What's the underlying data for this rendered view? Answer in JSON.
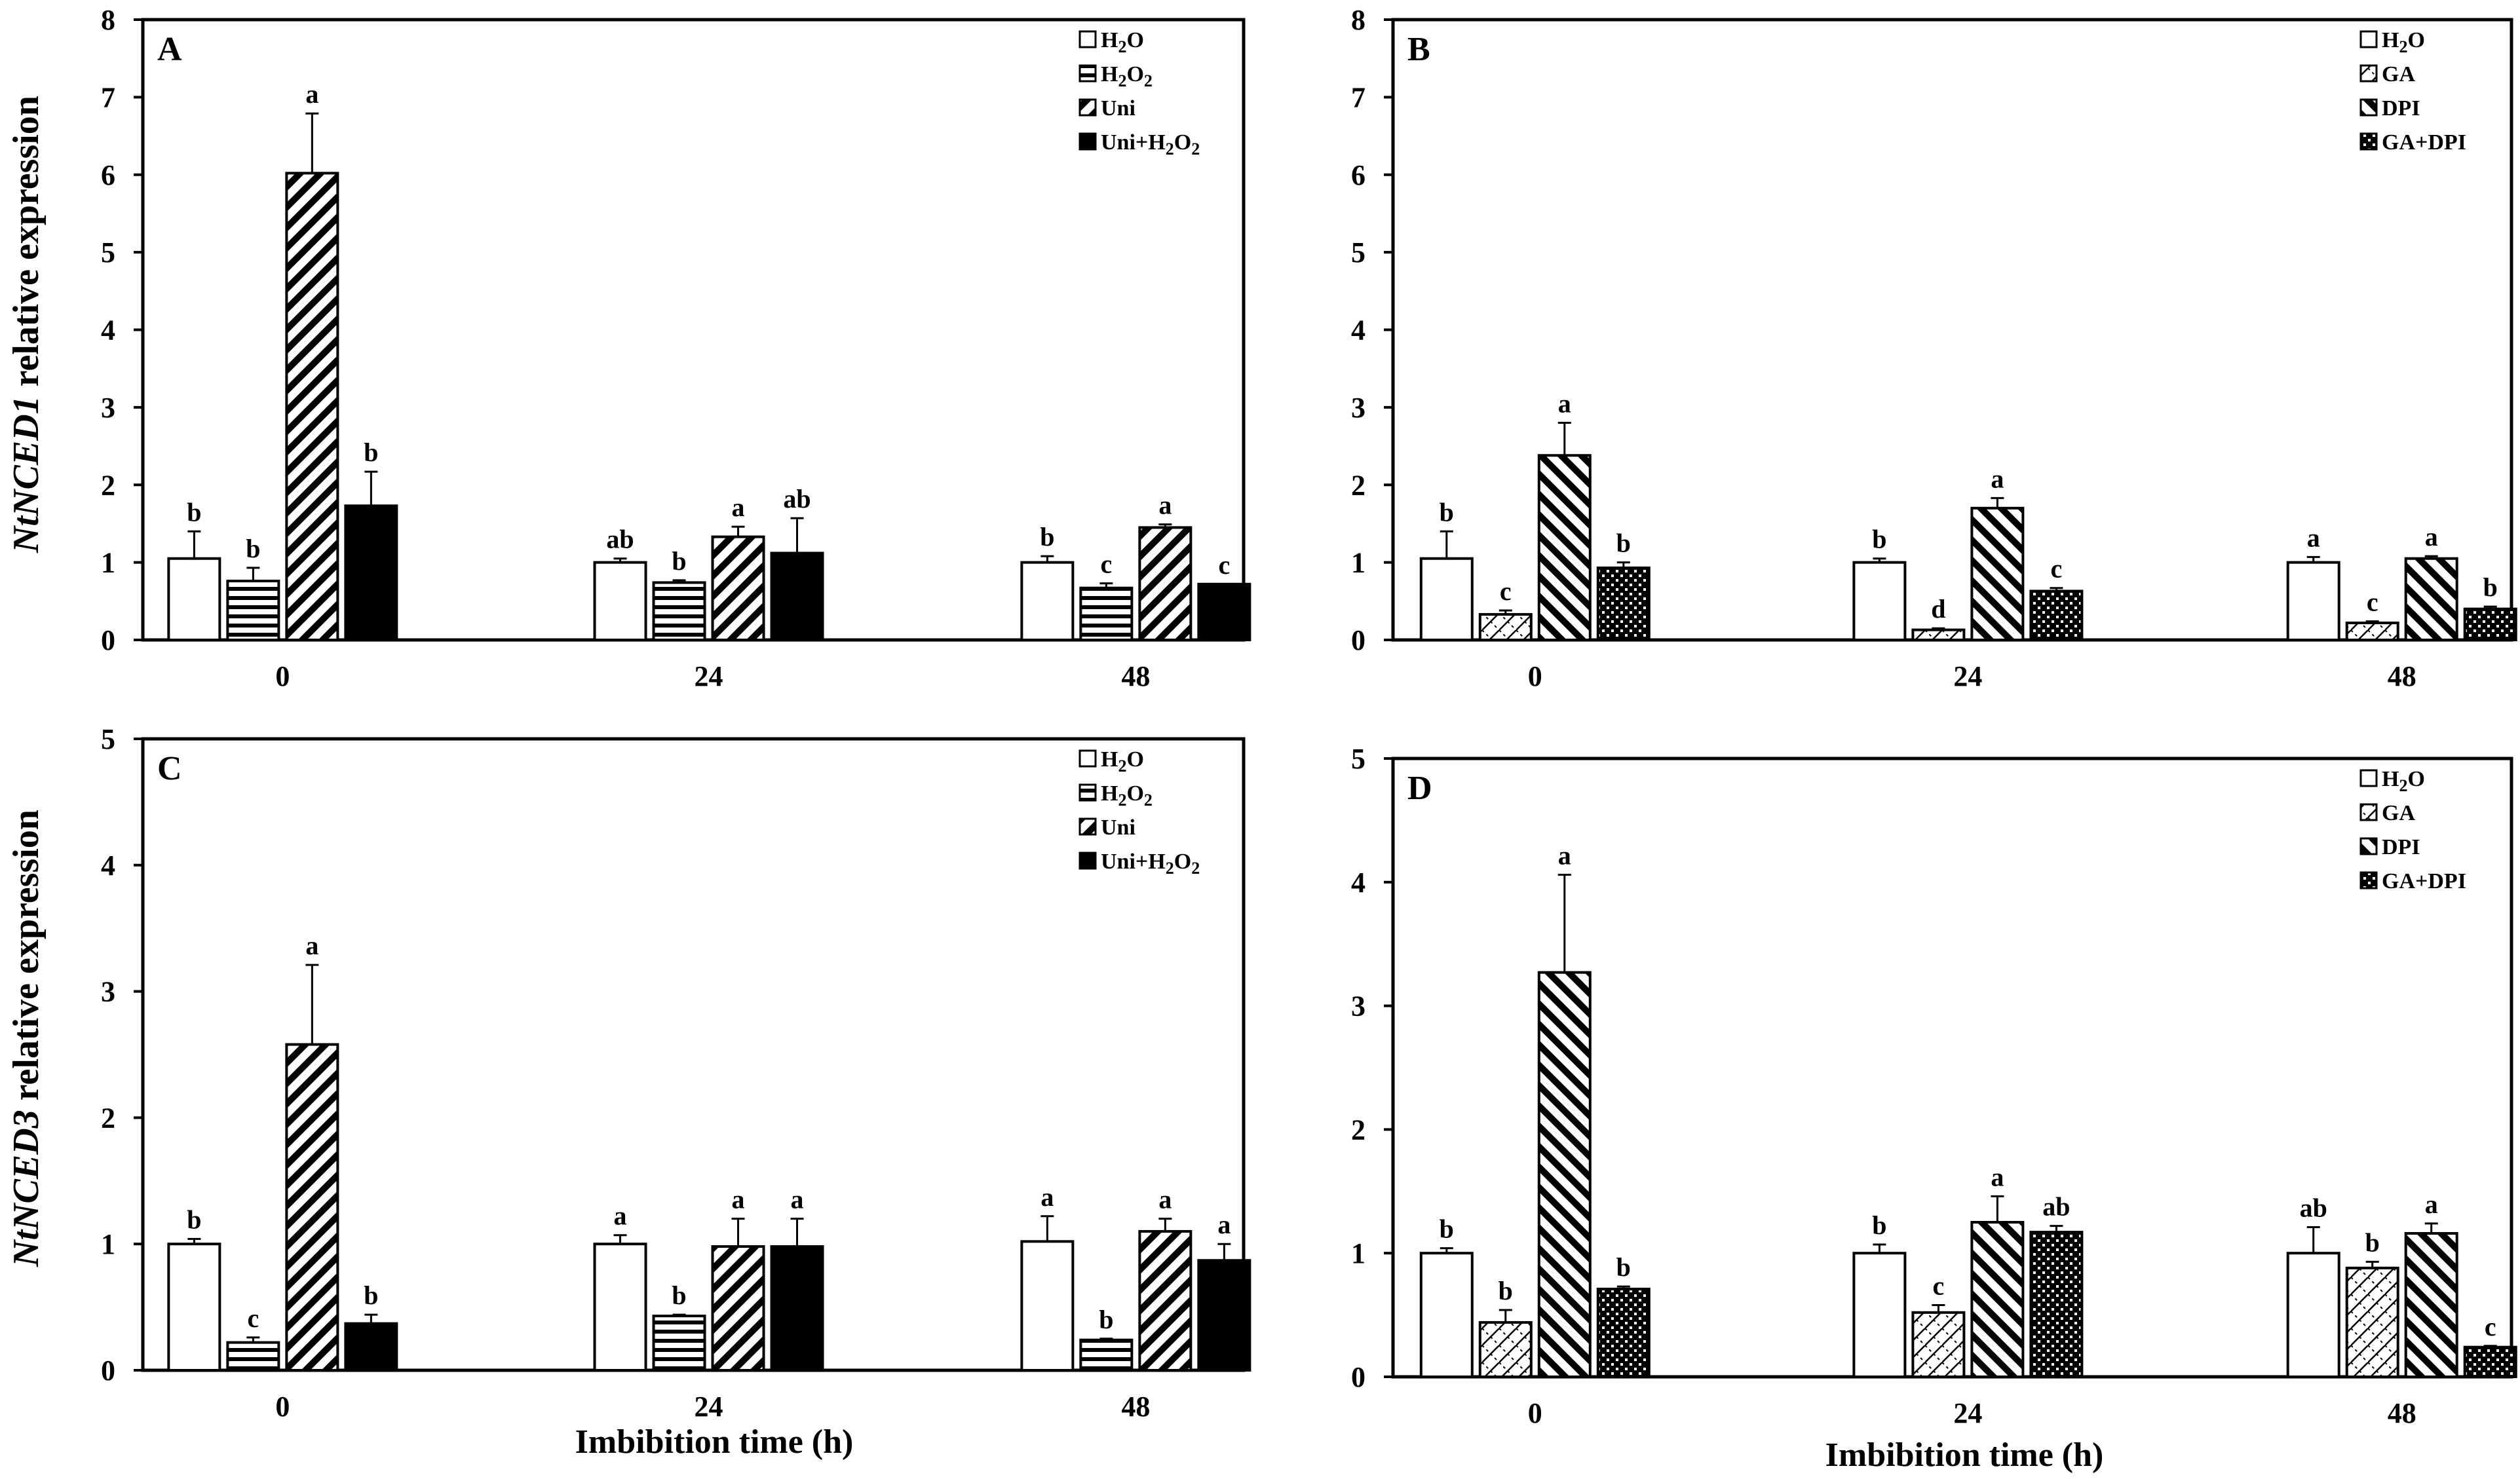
{
  "y_labels": {
    "top": {
      "gene": "NtNCED1",
      "rest": " relative expression"
    },
    "bottom": {
      "gene": "NtNCED3",
      "rest": " relative expression"
    }
  },
  "x_label": "Imbibition time (h)",
  "colors": {
    "ink": "#000000",
    "background": "#ffffff"
  },
  "chart_data": [
    {
      "panel": "A",
      "type": "bar",
      "ylim": [
        0,
        8
      ],
      "yticks": [
        0,
        1,
        2,
        3,
        4,
        5,
        6,
        7,
        8
      ],
      "categories": [
        "0",
        "24",
        "48"
      ],
      "xlabel": "",
      "legend_position": "top-right",
      "series": [
        {
          "name": "H2O",
          "label_main": "H",
          "label_sub": "2",
          "label_tail": "O",
          "pattern": "white",
          "values": [
            1.05,
            1.0,
            1.0
          ],
          "errors": [
            0.35,
            0.05,
            0.08
          ],
          "letters": [
            "b",
            "ab",
            "b"
          ]
        },
        {
          "name": "H2O2",
          "label_main": "H",
          "label_sub": "2",
          "label_tail": "O",
          "label_sub2": "2",
          "pattern": "hlines",
          "values": [
            0.76,
            0.74,
            0.67
          ],
          "errors": [
            0.17,
            0.03,
            0.06
          ],
          "letters": [
            "b",
            "b",
            "c"
          ]
        },
        {
          "name": "Uni",
          "label_main": "Uni",
          "pattern": "diag-up",
          "values": [
            6.02,
            1.33,
            1.45
          ],
          "errors": [
            0.77,
            0.13,
            0.04
          ],
          "letters": [
            "a",
            "a",
            "a"
          ]
        },
        {
          "name": "Uni+H2O2",
          "label_main": "Uni+H",
          "label_sub": "2",
          "label_tail": "O",
          "label_sub2": "2",
          "pattern": "black",
          "values": [
            1.73,
            1.12,
            0.72
          ],
          "errors": [
            0.44,
            0.45,
            0.0
          ],
          "letters": [
            "b",
            "ab",
            "c"
          ]
        }
      ]
    },
    {
      "panel": "B",
      "type": "bar",
      "ylim": [
        0,
        8
      ],
      "yticks": [
        0,
        1,
        2,
        3,
        4,
        5,
        6,
        7,
        8
      ],
      "categories": [
        "0",
        "24",
        "48"
      ],
      "xlabel": "",
      "legend_position": "top-right",
      "series": [
        {
          "name": "H2O",
          "label_main": "H",
          "label_sub": "2",
          "label_tail": "O",
          "pattern": "white",
          "values": [
            1.05,
            1.0,
            1.0
          ],
          "errors": [
            0.35,
            0.05,
            0.07
          ],
          "letters": [
            "b",
            "b",
            "a"
          ]
        },
        {
          "name": "GA",
          "label_main": "GA",
          "pattern": "light-cross",
          "values": [
            0.33,
            0.13,
            0.22
          ],
          "errors": [
            0.05,
            0.02,
            0.02
          ],
          "letters": [
            "c",
            "d",
            "c"
          ]
        },
        {
          "name": "DPI",
          "label_main": "DPI",
          "pattern": "diag-down",
          "values": [
            2.38,
            1.7,
            1.05
          ],
          "errors": [
            0.42,
            0.13,
            0.03
          ],
          "letters": [
            "a",
            "a",
            "a"
          ]
        },
        {
          "name": "GA+DPI",
          "label_main": "GA+DPI",
          "pattern": "dots",
          "values": [
            0.93,
            0.63,
            0.4
          ],
          "errors": [
            0.07,
            0.04,
            0.03
          ],
          "letters": [
            "b",
            "c",
            "b"
          ]
        }
      ]
    },
    {
      "panel": "C",
      "type": "bar",
      "ylim": [
        0,
        5
      ],
      "yticks": [
        0,
        1,
        2,
        3,
        4,
        5
      ],
      "categories": [
        "0",
        "24",
        "48"
      ],
      "xlabel": "Imbibition time (h)",
      "legend_position": "top-right",
      "series": [
        {
          "name": "H2O",
          "label_main": "H",
          "label_sub": "2",
          "label_tail": "O",
          "pattern": "white",
          "values": [
            1.0,
            1.0,
            1.02
          ],
          "errors": [
            0.04,
            0.07,
            0.2
          ],
          "letters": [
            "b",
            "a",
            "a"
          ]
        },
        {
          "name": "H2O2",
          "label_main": "H",
          "label_sub": "2",
          "label_tail": "O",
          "label_sub2": "2",
          "pattern": "hlines",
          "values": [
            0.22,
            0.43,
            0.24
          ],
          "errors": [
            0.04,
            0.01,
            0.01
          ],
          "letters": [
            "c",
            "b",
            "b"
          ]
        },
        {
          "name": "Uni",
          "label_main": "Uni",
          "pattern": "diag-up",
          "values": [
            2.58,
            0.98,
            1.1
          ],
          "errors": [
            0.63,
            0.22,
            0.1
          ],
          "letters": [
            "a",
            "a",
            "a"
          ]
        },
        {
          "name": "Uni+H2O2",
          "label_main": "Uni+H",
          "label_sub": "2",
          "label_tail": "O",
          "label_sub2": "2",
          "pattern": "black",
          "values": [
            0.37,
            0.98,
            0.87
          ],
          "errors": [
            0.07,
            0.22,
            0.13
          ],
          "letters": [
            "b",
            "a",
            "a"
          ]
        }
      ]
    },
    {
      "panel": "D",
      "type": "bar",
      "ylim": [
        0,
        5
      ],
      "yticks": [
        0,
        1,
        2,
        3,
        4,
        5
      ],
      "categories": [
        "0",
        "24",
        "48"
      ],
      "xlabel": "Imbibition time (h)",
      "legend_position": "top-right",
      "series": [
        {
          "name": "H2O",
          "label_main": "H",
          "label_sub": "2",
          "label_tail": "O",
          "pattern": "white",
          "values": [
            1.0,
            1.0,
            1.0
          ],
          "errors": [
            0.04,
            0.07,
            0.21
          ],
          "letters": [
            "b",
            "b",
            "ab"
          ]
        },
        {
          "name": "GA",
          "label_main": "GA",
          "pattern": "light-cross",
          "values": [
            0.44,
            0.52,
            0.88
          ],
          "errors": [
            0.1,
            0.06,
            0.05
          ],
          "letters": [
            "b",
            "c",
            "b"
          ]
        },
        {
          "name": "DPI",
          "label_main": "DPI",
          "pattern": "diag-down",
          "values": [
            3.27,
            1.25,
            1.16
          ],
          "errors": [
            0.79,
            0.21,
            0.08
          ],
          "letters": [
            "a",
            "a",
            "a"
          ]
        },
        {
          "name": "GA+DPI",
          "label_main": "GA+DPI",
          "pattern": "dots",
          "values": [
            0.71,
            1.17,
            0.24
          ],
          "errors": [
            0.02,
            0.05,
            0.01
          ],
          "letters": [
            "b",
            "ab",
            "c"
          ]
        }
      ]
    }
  ]
}
